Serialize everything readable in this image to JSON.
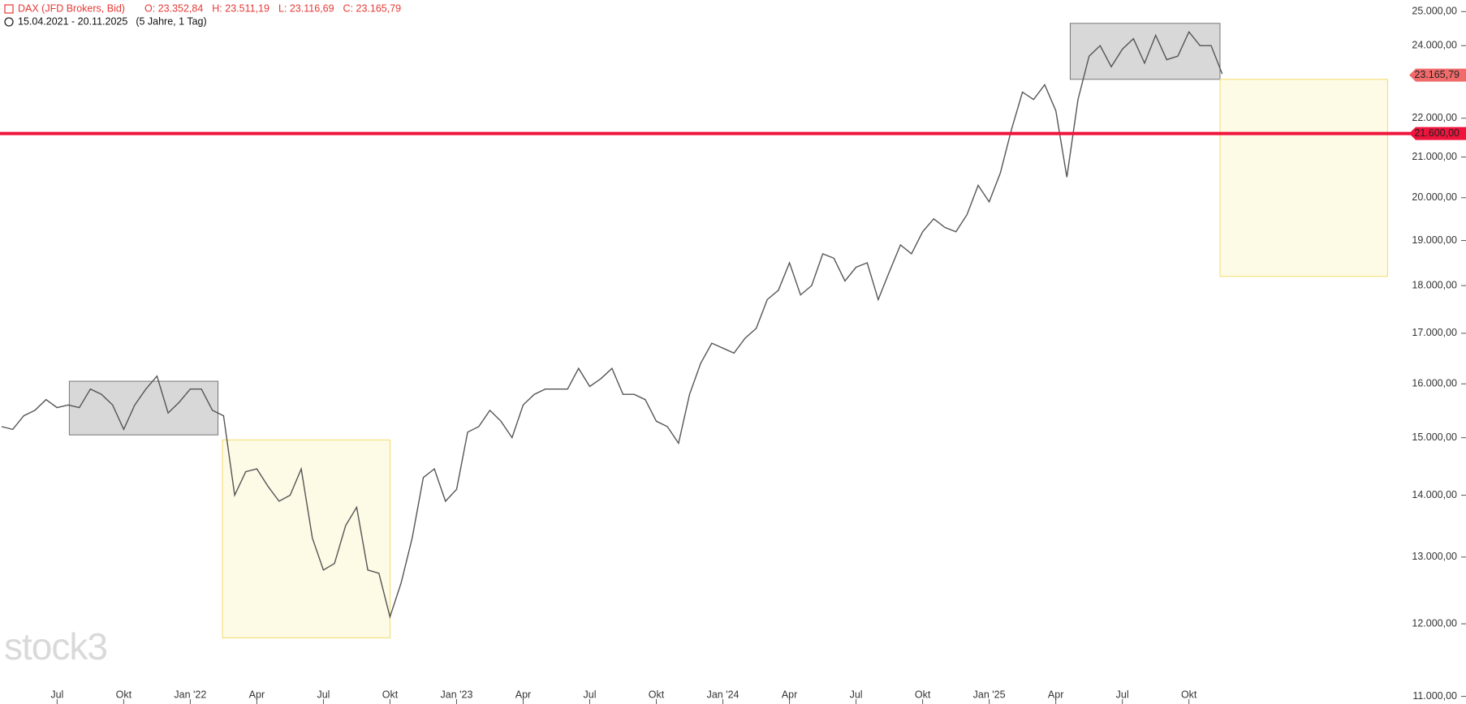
{
  "chart_data": {
    "type": "line",
    "title": "DAX (JFD Brokers, Bid)",
    "ohlc": [
      "O: 23.352,84",
      "H: 23.511,19",
      "L: 23.116,69",
      "C: 23.165,79"
    ],
    "subtitle": "15.04.2021 - 20.11.2025",
    "period": "(5 Jahre, 1 Tag)",
    "watermark": "stock3",
    "log_scale": true,
    "color": "#555555",
    "header_color": "#e53935",
    "categories": [
      null,
      null,
      null,
      null,
      null,
      "Jul",
      null,
      null,
      null,
      null,
      null,
      "Okt",
      null,
      null,
      null,
      null,
      null,
      "Jan '22",
      null,
      null,
      null,
      null,
      null,
      "Apr",
      null,
      null,
      null,
      null,
      null,
      "Jul",
      null,
      null,
      null,
      null,
      null,
      "Okt",
      null,
      null,
      null,
      null,
      null,
      "Jan '23",
      null,
      null,
      null,
      null,
      null,
      "Apr",
      null,
      null,
      null,
      null,
      null,
      "Jul",
      null,
      null,
      null,
      null,
      null,
      "Okt",
      null,
      null,
      null,
      null,
      null,
      "Jan '24",
      null,
      null,
      null,
      null,
      null,
      "Apr",
      null,
      null,
      null,
      null,
      null,
      "Jul",
      null,
      null,
      null,
      null,
      null,
      "Okt",
      null,
      null,
      null,
      null,
      null,
      "Jan '25",
      null,
      null,
      null,
      null,
      null,
      "Apr",
      null,
      null,
      null,
      null,
      null,
      "Jul",
      null,
      null,
      null,
      null,
      null,
      "Okt",
      null,
      null,
      null
    ],
    "values": [
      15200,
      15150,
      15400,
      15500,
      15700,
      15550,
      15600,
      15550,
      15900,
      15800,
      15600,
      15150,
      15600,
      15900,
      16150,
      15450,
      15650,
      15900,
      15900,
      15500,
      15400,
      14000,
      14400,
      14450,
      14150,
      13900,
      14000,
      14450,
      13300,
      12800,
      12900,
      13500,
      13800,
      12800,
      12750,
      12100,
      12600,
      13300,
      14300,
      14450,
      13900,
      14100,
      15100,
      15200,
      15500,
      15300,
      15000,
      15600,
      15800,
      15900,
      15900,
      15900,
      16300,
      15950,
      16100,
      16300,
      15800,
      15800,
      15700,
      15300,
      15200,
      14900,
      15800,
      16400,
      16800,
      16700,
      16600,
      16900,
      17100,
      17700,
      17900,
      18500,
      17800,
      18000,
      18700,
      18600,
      18100,
      18400,
      18500,
      17700,
      18300,
      18900,
      18700,
      19200,
      19500,
      19300,
      19200,
      19600,
      20300,
      19900,
      20600,
      21700,
      22700,
      22500,
      22900,
      22200,
      20500,
      22500,
      23700,
      24000,
      23400,
      23900,
      24200,
      23500,
      24300,
      23600,
      23700,
      24400,
      24000,
      24000,
      23200
    ],
    "ylim": [
      10900,
      25350
    ],
    "yticks": [
      {
        "value": 11000,
        "label": "11.000,00"
      },
      {
        "value": 12000,
        "label": "12.000,00"
      },
      {
        "value": 13000,
        "label": "13.000,00"
      },
      {
        "value": 14000,
        "label": "14.000,00"
      },
      {
        "value": 15000,
        "label": "15.000,00"
      },
      {
        "value": 16000,
        "label": "16.000,00"
      },
      {
        "value": 17000,
        "label": "17.000,00"
      },
      {
        "value": 18000,
        "label": "18.000,00"
      },
      {
        "value": 19000,
        "label": "19.000,00"
      },
      {
        "value": 20000,
        "label": "20.000,00"
      },
      {
        "value": 21000,
        "label": "21.000,00"
      },
      {
        "value": 22000,
        "label": "22.000,00"
      },
      {
        "value": 24000,
        "label": "24.000,00"
      },
      {
        "value": 25000,
        "label": "25.000,00"
      }
    ],
    "last_price": {
      "value": 23165.79,
      "label": "23.165,79",
      "color": "#f26b6b"
    },
    "hline": {
      "value": 21600,
      "label": "21.600,00",
      "color": "#f0143c"
    },
    "zones": [
      {
        "x0": 6.1,
        "x1": 19.5,
        "low": 15050,
        "high": 16050,
        "color": "#d4d4d4"
      },
      {
        "x0": 19.9,
        "x1": 35.0,
        "low": 11800,
        "high": 14960,
        "color": "#fdf9e3"
      },
      {
        "x0": 96.3,
        "x1": 109.8,
        "low": 23050,
        "high": 24650,
        "color": "#d4d4d4"
      },
      {
        "x0": 109.8,
        "x1": 124.9,
        "low": 18200,
        "high": 23050,
        "color": "#fdf9e3"
      }
    ]
  }
}
